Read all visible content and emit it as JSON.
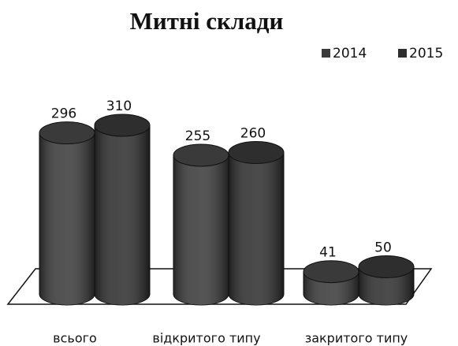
{
  "chart_data": {
    "type": "bar",
    "title": "Митні склади",
    "categories": [
      "всього",
      "відкритого типу",
      "закритого типу"
    ],
    "series": [
      {
        "name": "2014",
        "color": "#3a3a3a",
        "values": [
          296,
          255,
          41
        ]
      },
      {
        "name": "2015",
        "color": "#2e2e2e",
        "values": [
          310,
          260,
          50
        ]
      }
    ],
    "legend": "top-right"
  }
}
